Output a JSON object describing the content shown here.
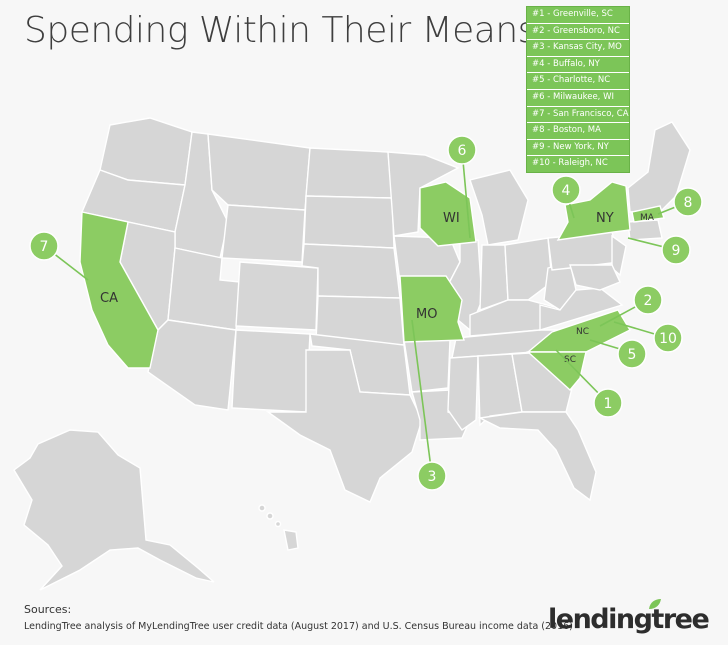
{
  "title": "Spending Within Their Means",
  "legend": {
    "items": [
      "#1 - Greenville, SC",
      "#2 - Greensboro, NC",
      "#3 - Kansas City, MO",
      "#4 - Buffalo, NY",
      "#5 - Charlotte, NC",
      "#6 - Milwaukee, WI",
      "#7 - San Francisco, CA",
      "#8 - Boston, MA",
      "#9 - New York, NY",
      "#10 - Raleigh, NC"
    ]
  },
  "map": {
    "highlight_color": "#8ccc63",
    "base_color": "#d6d6d6",
    "state_labels": {
      "ca": "CA",
      "wi": "WI",
      "mo": "MO",
      "ny": "NY",
      "ma": "MA",
      "nc": "NC",
      "sc": "SC"
    },
    "markers": {
      "m1": "1",
      "m2": "2",
      "m3": "3",
      "m4": "4",
      "m5": "5",
      "m6": "6",
      "m7": "7",
      "m8": "8",
      "m9": "9",
      "m10": "10"
    }
  },
  "sources": {
    "title": "Sources:",
    "text": "LendingTree analysis of MyLendingTree user credit data (August 2017) and U.S. Census Bureau income data (2016)"
  },
  "logo": {
    "text": "lendingtree",
    "accent": "#7cc558"
  }
}
